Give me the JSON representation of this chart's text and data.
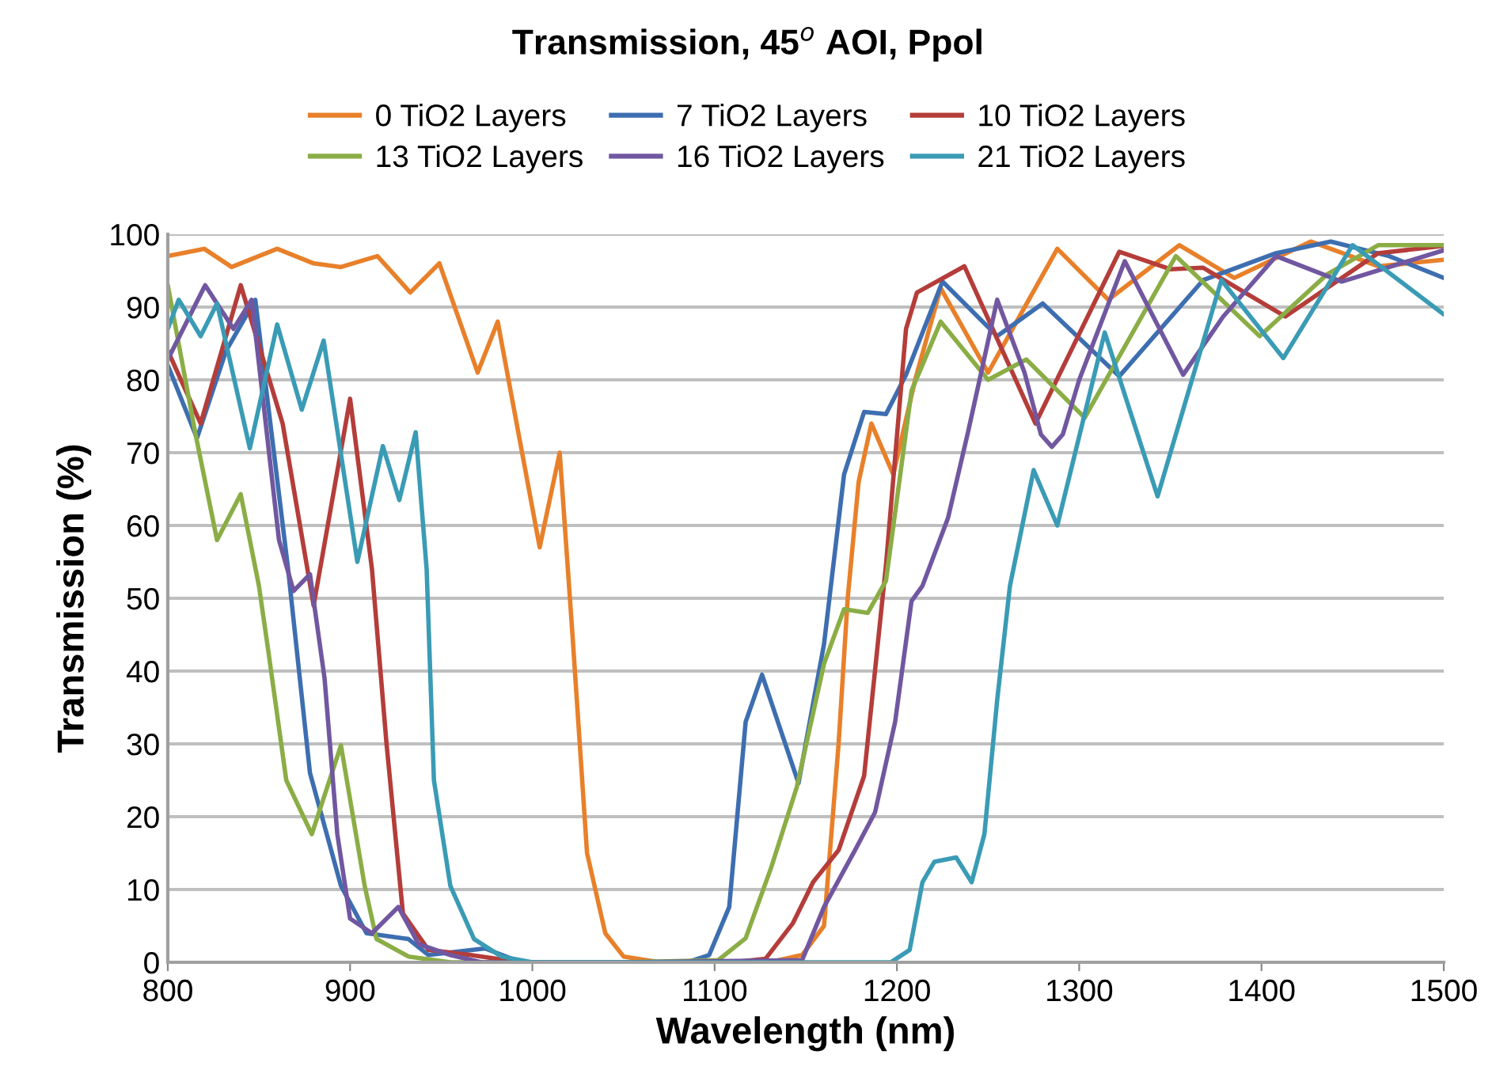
{
  "chart_data": {
    "type": "line",
    "title": "Transmission, 45$^{o}$ AOI, Ppol",
    "xlabel": "Wavelength (nm)",
    "ylabel": "Transmission (%)",
    "xlim": [
      800,
      1500
    ],
    "ylim": [
      0,
      100
    ],
    "xticks": [
      800,
      900,
      1000,
      1100,
      1200,
      1300,
      1400,
      1500
    ],
    "yticks": [
      0,
      10,
      20,
      30,
      40,
      50,
      60,
      70,
      80,
      90,
      100
    ],
    "grid": "y",
    "legend": "top",
    "marker": "none",
    "line_style": "solid",
    "series": [
      {
        "name": "0 TiO2 Layers",
        "color": "#e8802a",
        "x": [
          800,
          820,
          835,
          860,
          880,
          895,
          915,
          933,
          949,
          970,
          981,
          1004,
          1015,
          1022,
          1030,
          1040,
          1050,
          1070,
          1100,
          1130,
          1148,
          1160,
          1168,
          1173,
          1179,
          1186,
          1198,
          1210,
          1224,
          1250,
          1288,
          1316,
          1355,
          1385,
          1427,
          1464,
          1500
        ],
        "values": [
          97,
          98,
          95.5,
          98,
          96,
          95.5,
          97,
          92,
          96,
          81,
          88,
          57,
          70,
          45,
          15,
          4,
          0.8,
          0,
          0,
          0,
          1,
          5,
          30,
          50,
          66,
          74,
          67,
          80,
          92.6,
          81,
          98,
          91,
          98.5,
          94,
          99,
          95.6,
          96.5
        ]
      },
      {
        "name": "7 TiO2 Layers",
        "color": "#3d6eb0",
        "x": [
          800,
          816,
          832,
          848,
          866,
          878,
          895,
          909,
          932,
          943,
          974,
          994,
          1050,
          1085,
          1097,
          1108,
          1117,
          1126,
          1146,
          1160,
          1171,
          1182,
          1194,
          1205,
          1225,
          1255,
          1280,
          1322,
          1368,
          1408,
          1438,
          1470,
          1500
        ],
        "values": [
          82,
          72,
          84,
          91,
          54,
          26,
          10.5,
          4,
          3.2,
          1,
          1.9,
          0,
          0,
          0,
          1,
          7.6,
          33,
          39.5,
          24.6,
          43.7,
          67,
          75.6,
          75.3,
          80.7,
          93.5,
          86,
          90.5,
          80.5,
          93.7,
          97.4,
          99,
          97,
          94
        ]
      },
      {
        "name": "10 TiO2 Layers",
        "color": "#b43d3a",
        "x": [
          800,
          818,
          840,
          863,
          880,
          900,
          912,
          920,
          929,
          943,
          966,
          994,
          1050,
          1110,
          1128,
          1143,
          1154,
          1168,
          1182,
          1194,
          1205,
          1211,
          1237,
          1276,
          1322,
          1350,
          1368,
          1413,
          1464,
          1500
        ],
        "values": [
          84,
          74,
          93,
          74,
          49,
          77.4,
          54,
          30,
          6.7,
          1.7,
          1,
          0,
          0,
          0,
          0.5,
          5.4,
          11,
          15.4,
          25.6,
          54.6,
          87,
          92,
          95.6,
          74,
          97.6,
          95.2,
          95.4,
          88.7,
          97.4,
          98.4
        ]
      },
      {
        "name": "13 TiO2 Layers",
        "color": "#8bad46",
        "x": [
          800,
          815,
          827,
          840,
          850,
          855,
          865,
          879,
          895,
          908,
          914.5,
          932,
          955,
          1050,
          1102,
          1117,
          1131,
          1145,
          1160,
          1171,
          1184,
          1194,
          1208,
          1224,
          1250,
          1271,
          1303,
          1353,
          1399,
          1436,
          1464,
          1500
        ],
        "values": [
          93,
          72.8,
          58,
          64.3,
          51.7,
          43,
          25,
          17.6,
          29.8,
          10.5,
          3.2,
          0.8,
          0,
          0,
          0.3,
          3.3,
          13,
          24,
          41,
          48.5,
          48,
          52.4,
          78.5,
          88,
          80,
          82.8,
          74.8,
          97,
          86,
          94.5,
          98.5,
          98.5
        ]
      },
      {
        "name": "16 TiO2 Layers",
        "color": "#7157a0",
        "x": [
          800,
          820.5,
          836,
          846,
          861,
          869,
          878,
          886,
          893,
          900,
          912,
          926.5,
          937.6,
          955,
          972,
          1050,
          1148,
          1160,
          1177,
          1188,
          1199,
          1208,
          1214,
          1228,
          1239,
          1255,
          1270,
          1279,
          1285,
          1291,
          1300,
          1325,
          1357,
          1379,
          1408,
          1444,
          1500
        ],
        "values": [
          82.8,
          93,
          87,
          91,
          58,
          51,
          53.3,
          39,
          17.6,
          6,
          4,
          7.6,
          2.5,
          1,
          0,
          0,
          0.3,
          7.6,
          15.4,
          20.6,
          33,
          49.6,
          51.7,
          61,
          72.8,
          91,
          81,
          72.5,
          70.8,
          72.5,
          80,
          96.3,
          80.7,
          88.7,
          97,
          93.5,
          97.8
        ]
      },
      {
        "name": "21 TiO2 Layers",
        "color": "#3a9bb5",
        "x": [
          800,
          806,
          818,
          827,
          845,
          860,
          873.5,
          885.5,
          904,
          918,
          927,
          936,
          942,
          946,
          955,
          968,
          983,
          1000,
          1100,
          1196.6,
          1207,
          1214,
          1220.5,
          1232.5,
          1241,
          1248,
          1255,
          1262,
          1275,
          1288,
          1314,
          1343,
          1378,
          1412,
          1450,
          1500
        ],
        "values": [
          87,
          91,
          86,
          90.5,
          70.6,
          87.6,
          75.9,
          85.4,
          55,
          70.9,
          63.5,
          72.8,
          54,
          25,
          10.5,
          3.2,
          0.8,
          0,
          0,
          0,
          1.7,
          11,
          13.8,
          14.4,
          11,
          17.6,
          36,
          51.7,
          67.6,
          60,
          86.5,
          64,
          93.7,
          83,
          98.5,
          89
        ]
      }
    ]
  }
}
